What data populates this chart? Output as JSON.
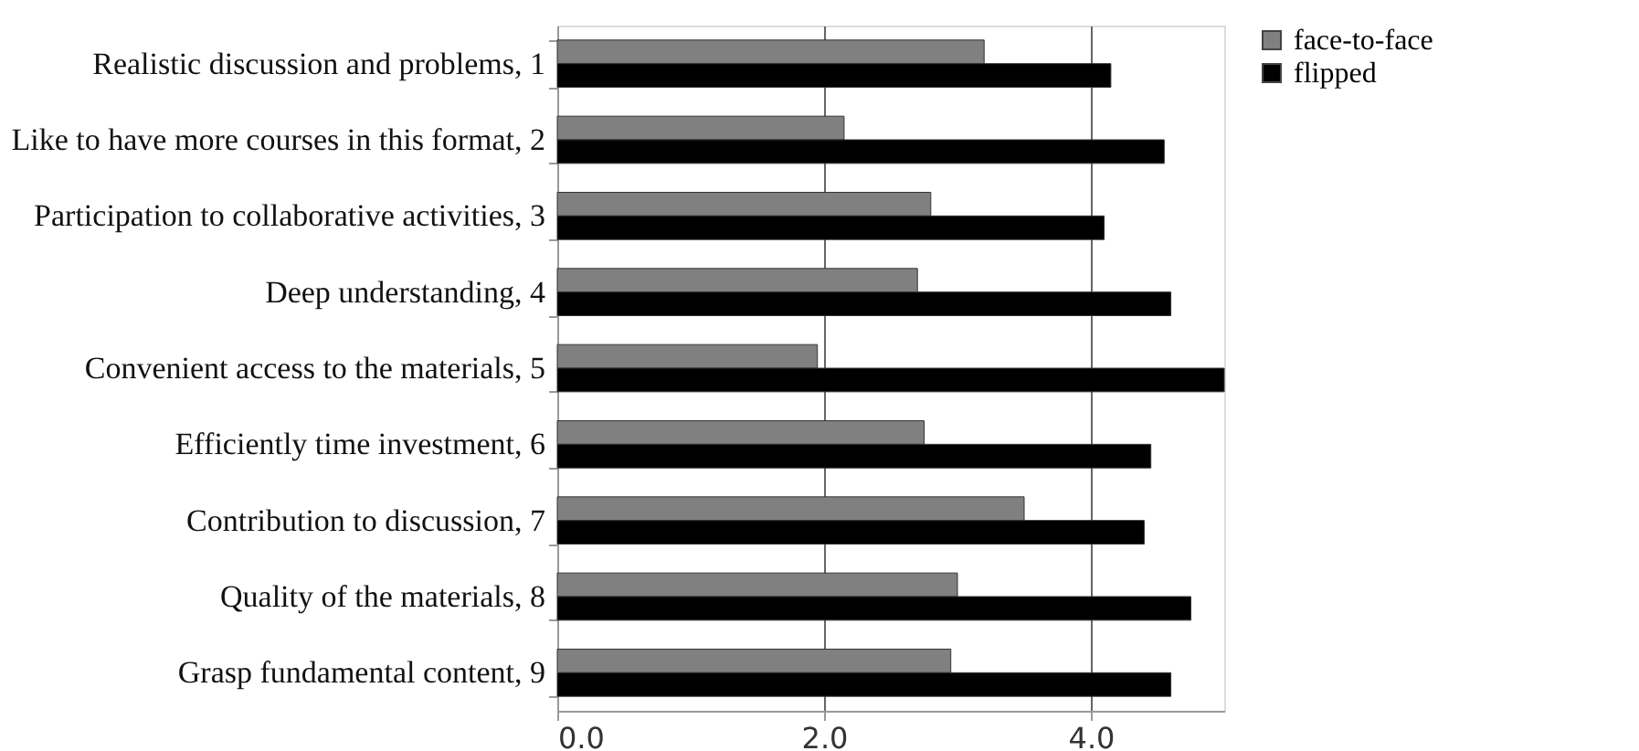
{
  "chart_data": {
    "type": "bar",
    "orientation": "horizontal",
    "categories": [
      "Realistic discussion and problems, 1",
      "Like to have more courses in this format, 2",
      "Participation to collaborative activities, 3",
      "Deep understanding, 4",
      "Convenient access to the materials, 5",
      "Efficiently time investment, 6",
      "Contribution to discussion, 7",
      "Quality of the materials, 8",
      "Grasp fundamental content, 9"
    ],
    "series": [
      {
        "name": "face-to-face",
        "color": "#808080",
        "values": [
          3.2,
          2.15,
          2.8,
          2.7,
          1.95,
          2.75,
          3.5,
          3.0,
          2.95
        ]
      },
      {
        "name": "flipped",
        "color": "#000000",
        "values": [
          4.15,
          4.55,
          4.1,
          4.6,
          5.0,
          4.45,
          4.4,
          4.75,
          4.6
        ]
      }
    ],
    "xlim": [
      0,
      5
    ],
    "xticks": [
      {
        "value": 0,
        "label": "0.0"
      },
      {
        "value": 2,
        "label": "2.0"
      },
      {
        "value": 4,
        "label": "4.0"
      }
    ],
    "grid": "x",
    "legend": "right"
  }
}
